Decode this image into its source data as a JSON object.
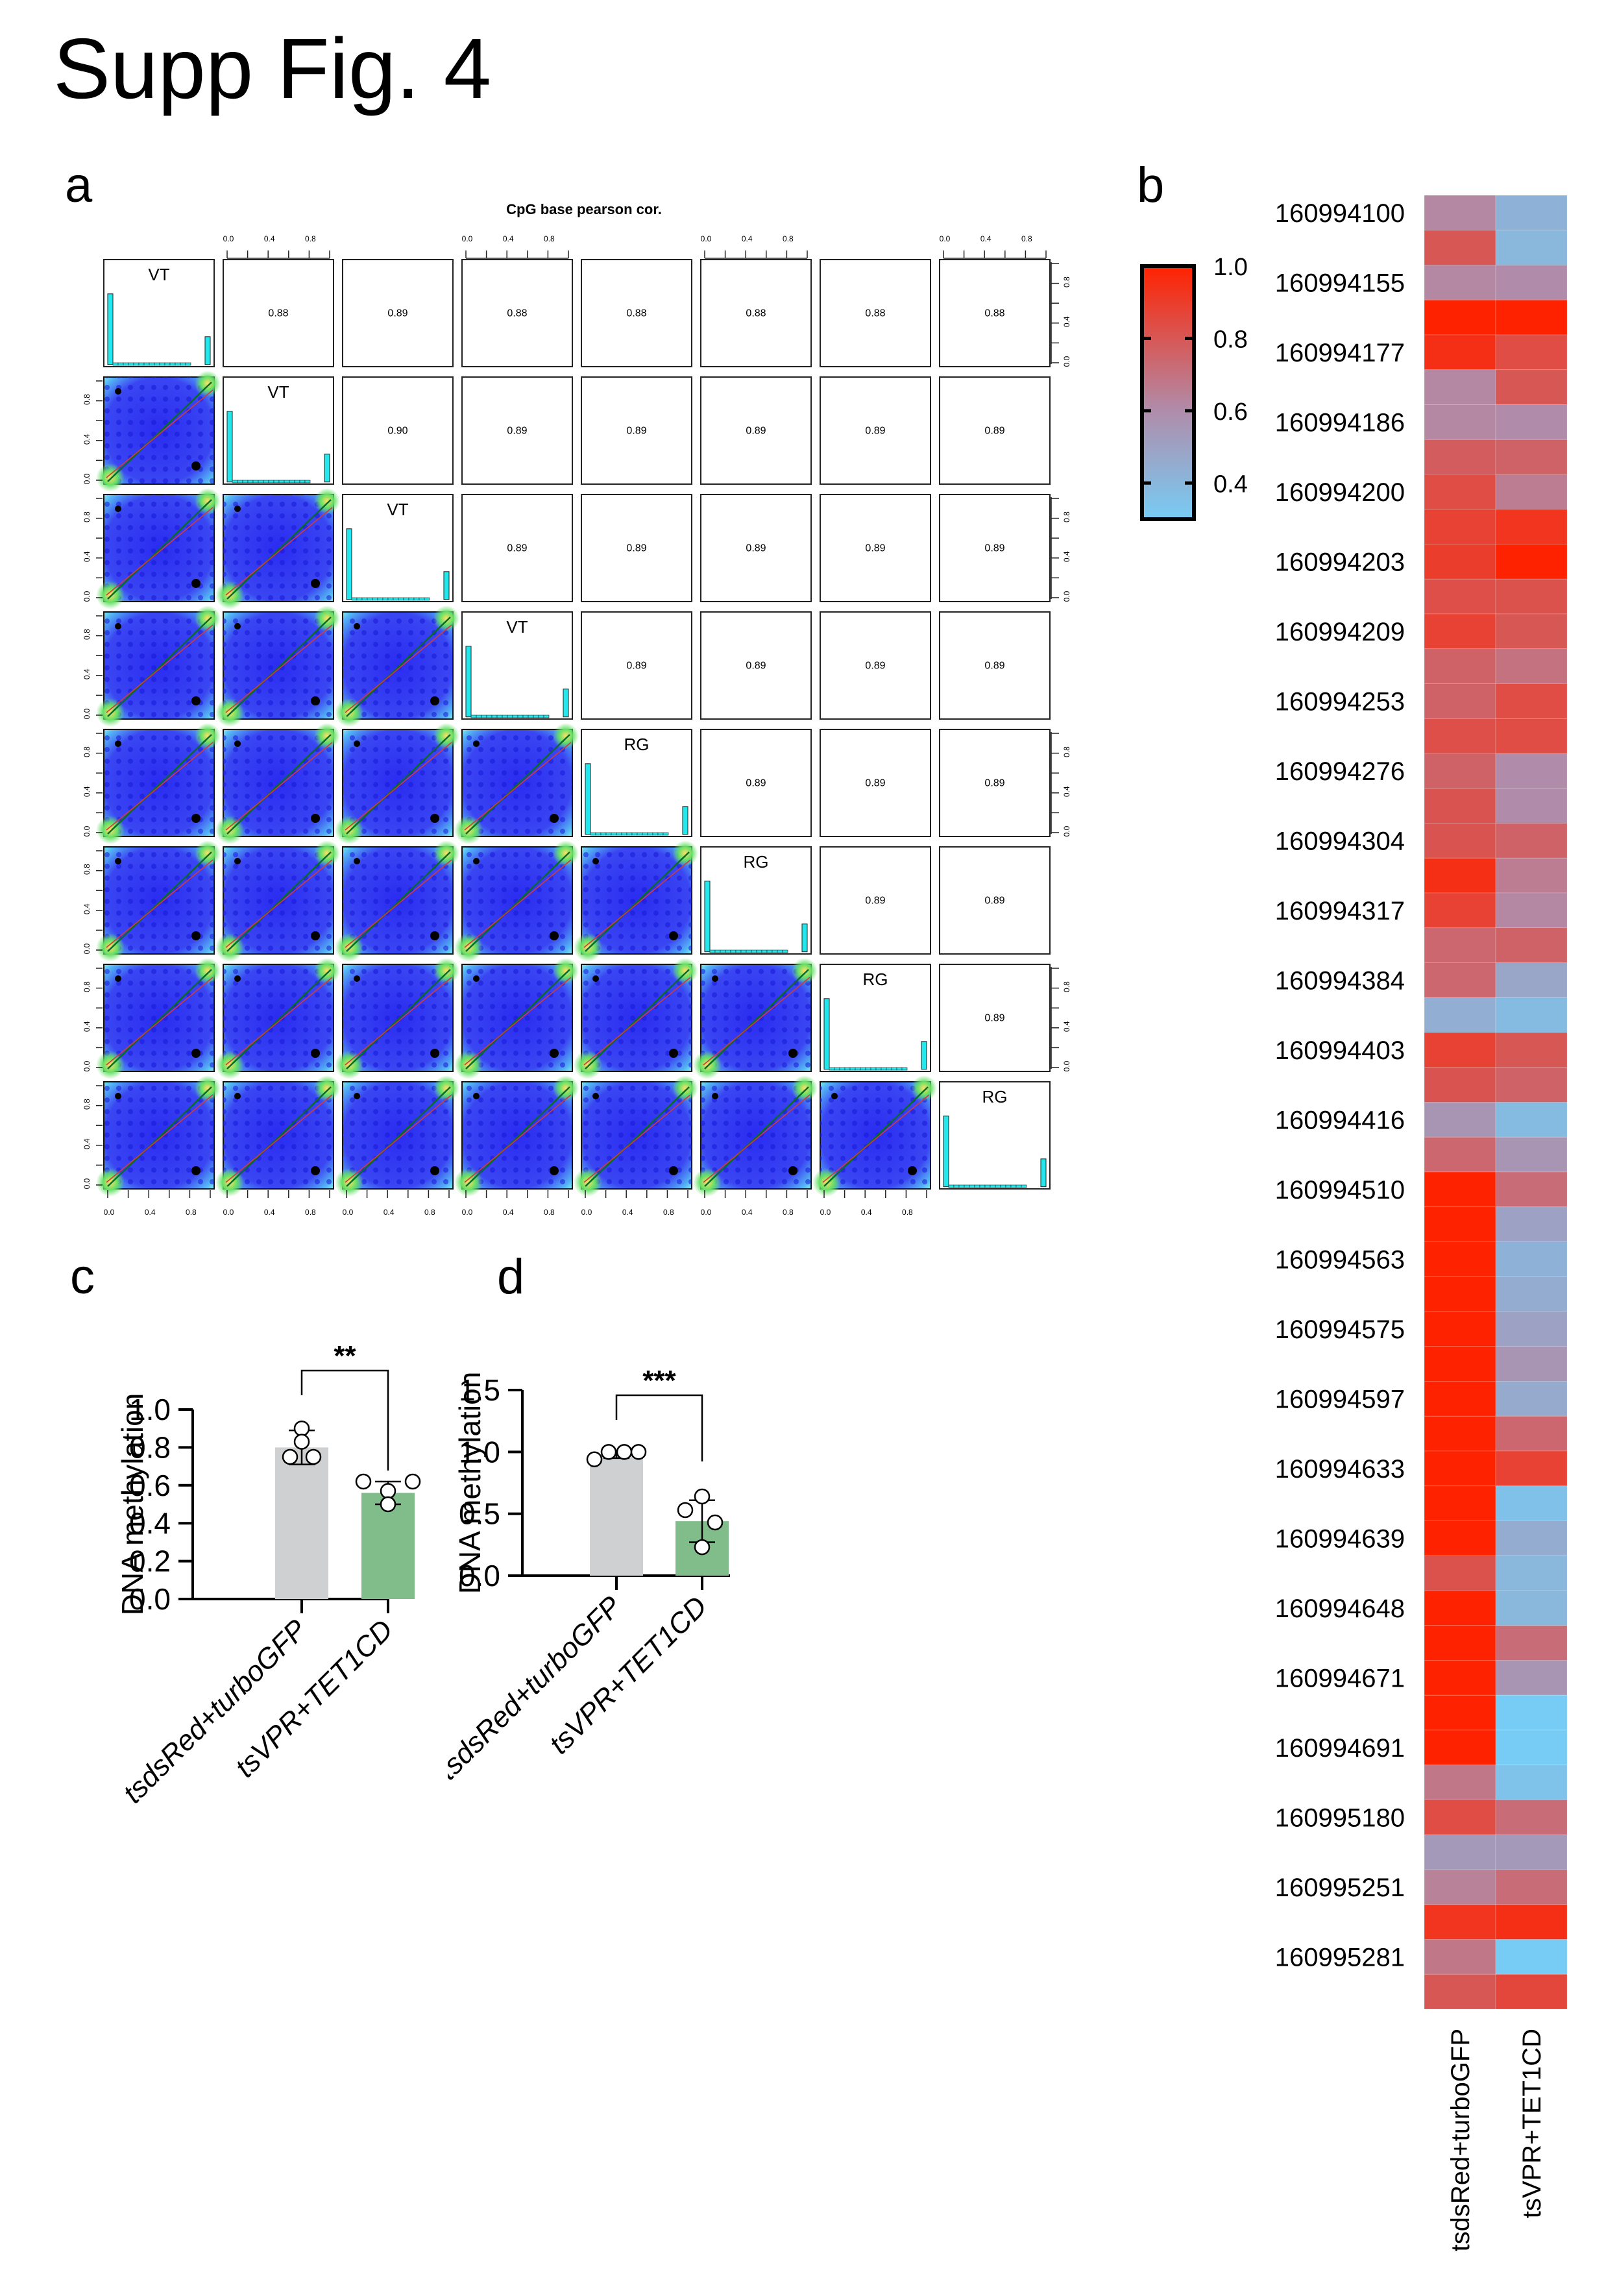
{
  "figure": {
    "title": "Supp Fig. 4",
    "panel_labels": [
      "a",
      "b",
      "c",
      "d"
    ]
  },
  "chart_data": [
    {
      "id": "a",
      "type": "scatter",
      "title": "CpG base pearson cor.",
      "samples": [
        "VT",
        "VT",
        "VT",
        "VT",
        "RG",
        "RG",
        "RG",
        "RG"
      ],
      "axis_ticks": [
        "0.0",
        "0.4",
        "0.8"
      ],
      "axis_range": [
        0,
        1
      ],
      "correlation_matrix_upper": [
        [
          null,
          "0.88",
          "0.89",
          "0.88",
          "0.88",
          "0.88",
          "0.88",
          "0.88"
        ],
        [
          null,
          null,
          "0.90",
          "0.89",
          "0.89",
          "0.89",
          "0.89",
          "0.89"
        ],
        [
          null,
          null,
          null,
          "0.89",
          "0.89",
          "0.89",
          "0.89",
          "0.89"
        ],
        [
          null,
          null,
          null,
          null,
          "0.89",
          "0.89",
          "0.89",
          "0.89"
        ],
        [
          null,
          null,
          null,
          null,
          null,
          "0.89",
          "0.89",
          "0.89"
        ],
        [
          null,
          null,
          null,
          null,
          null,
          null,
          "0.89",
          "0.89"
        ],
        [
          null,
          null,
          null,
          null,
          null,
          null,
          null,
          "0.89"
        ],
        [
          null,
          null,
          null,
          null,
          null,
          null,
          null,
          null
        ]
      ],
      "diagonal_histogram": "bimodal, peaks near 0.0 and 1.0",
      "lower_panels": "smoothed density scatter with fitted regression line (red) and identity line (green)"
    },
    {
      "id": "b",
      "type": "heatmap",
      "columns": [
        "tsdsRed+turboGFP",
        "tsVPR+TET1CD"
      ],
      "row_labels": [
        "160994100",
        "",
        "160994155",
        "",
        "160994177",
        "",
        "160994186",
        "",
        "160994200",
        "",
        "160994203",
        "",
        "160994209",
        "",
        "160994253",
        "",
        "160994276",
        "",
        "160994304",
        "",
        "160994317",
        "",
        "160994384",
        "",
        "160994403",
        "",
        "160994416",
        "",
        "160994510",
        "",
        "160994563",
        "",
        "160994575",
        "",
        "160994597",
        "",
        "160994633",
        "",
        "160994639",
        "",
        "160994648",
        "",
        "160994671",
        "",
        "160994691",
        "",
        "160995180",
        "",
        "160995251",
        "",
        "160995281",
        ""
      ],
      "values": [
        [
          0.62,
          0.42
        ],
        [
          0.8,
          0.4
        ],
        [
          0.62,
          0.6
        ],
        [
          1.0,
          1.0
        ],
        [
          0.95,
          0.84
        ],
        [
          0.62,
          0.8
        ],
        [
          0.62,
          0.6
        ],
        [
          0.78,
          0.76
        ],
        [
          0.84,
          0.66
        ],
        [
          0.88,
          0.93
        ],
        [
          0.9,
          1.0
        ],
        [
          0.83,
          0.82
        ],
        [
          0.88,
          0.8
        ],
        [
          0.76,
          0.7
        ],
        [
          0.76,
          0.84
        ],
        [
          0.83,
          0.84
        ],
        [
          0.76,
          0.6
        ],
        [
          0.81,
          0.6
        ],
        [
          0.81,
          0.76
        ],
        [
          0.95,
          0.66
        ],
        [
          0.88,
          0.62
        ],
        [
          0.74,
          0.76
        ],
        [
          0.74,
          0.48
        ],
        [
          0.44,
          0.38
        ],
        [
          0.88,
          0.8
        ],
        [
          0.81,
          0.76
        ],
        [
          0.56,
          0.38
        ],
        [
          0.74,
          0.56
        ],
        [
          1.0,
          0.72
        ],
        [
          1.0,
          0.5
        ],
        [
          1.0,
          0.42
        ],
        [
          1.0,
          0.45
        ],
        [
          1.0,
          0.5
        ],
        [
          1.0,
          0.56
        ],
        [
          1.0,
          0.46
        ],
        [
          1.0,
          0.74
        ],
        [
          1.0,
          0.88
        ],
        [
          1.0,
          0.35
        ],
        [
          1.0,
          0.45
        ],
        [
          0.82,
          0.4
        ],
        [
          1.0,
          0.4
        ],
        [
          1.0,
          0.72
        ],
        [
          1.0,
          0.56
        ],
        [
          1.0,
          0.3
        ],
        [
          1.0,
          0.3
        ],
        [
          0.68,
          0.34
        ],
        [
          0.84,
          0.72
        ],
        [
          0.54,
          0.54
        ],
        [
          0.64,
          0.72
        ],
        [
          0.93,
          0.95
        ],
        [
          0.68,
          0.3
        ],
        [
          0.8,
          0.86
        ]
      ],
      "colorbar": {
        "ticks": [
          "1.0",
          "0.8",
          "0.6",
          "0.4"
        ],
        "range": [
          0.3,
          1.0
        ],
        "low_color": "#77CCF5",
        "mid_color": "#B08CAA",
        "high_color": "#FF2200"
      }
    },
    {
      "id": "c",
      "type": "bar",
      "categories": [
        "tsdsRed+turboGFP",
        "tsVPR+TET1CD"
      ],
      "values": [
        0.8,
        0.56
      ],
      "errors": [
        0.09,
        0.06
      ],
      "points": [
        [
          0.9,
          0.83,
          0.75,
          0.75
        ],
        [
          0.62,
          0.62,
          0.57,
          0.5
        ]
      ],
      "bar_colors": [
        "#CFD0D2",
        "#80BD8A"
      ],
      "significance": "**",
      "ylabel": "DNA methylation",
      "yticks": [
        "0.0",
        "0.2",
        "0.4",
        "0.6",
        "0.8",
        "1.0"
      ],
      "ylim": [
        0,
        1.0
      ]
    },
    {
      "id": "d",
      "type": "bar",
      "categories": [
        "tsdsRed+turboGFP",
        "tsVPR+TET1CD"
      ],
      "values": [
        0.97,
        0.44
      ],
      "errors": [
        0.02,
        0.17
      ],
      "points": [
        [
          0.94,
          1.0,
          1.0,
          1.0
        ],
        [
          0.64,
          0.53,
          0.43,
          0.23
        ]
      ],
      "bar_colors": [
        "#CFD0D2",
        "#80BD8A"
      ],
      "significance": "***",
      "ylabel": "DNA methylation",
      "yticks": [
        "0.0",
        "0.5",
        "1.0",
        "1.5"
      ],
      "ylim": [
        0,
        1.5
      ]
    }
  ]
}
